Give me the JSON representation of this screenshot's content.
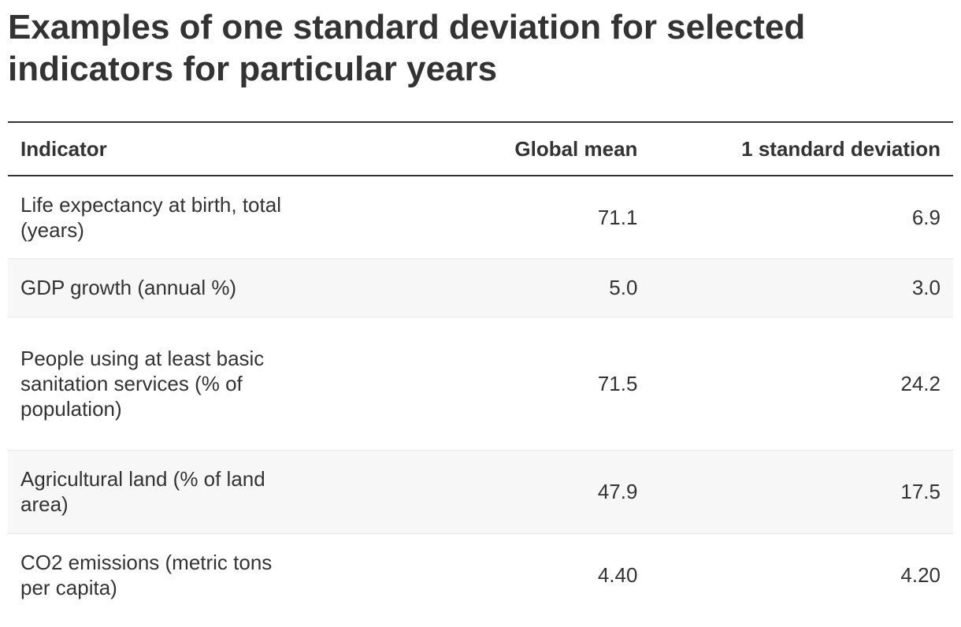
{
  "title": "Examples of one standard deviation for selected indicators for particular years",
  "table": {
    "headers": [
      "Indicator",
      "Global mean",
      "1 standard deviation"
    ],
    "rows": [
      {
        "indicator": "Life expectancy at birth, total (years)",
        "mean": "71.1",
        "sd": "6.9"
      },
      {
        "indicator": "GDP growth (annual %)",
        "mean": "5.0",
        "sd": "3.0"
      },
      {
        "indicator": "People using at least basic sanitation services (% of population)",
        "mean": "71.5",
        "sd": "24.2"
      },
      {
        "indicator": "Agricultural land (% of land area)",
        "mean": "47.9",
        "sd": "17.5"
      },
      {
        "indicator": "CO2 emissions (metric tons per capita)",
        "mean": "4.40",
        "sd": "4.20"
      }
    ]
  }
}
